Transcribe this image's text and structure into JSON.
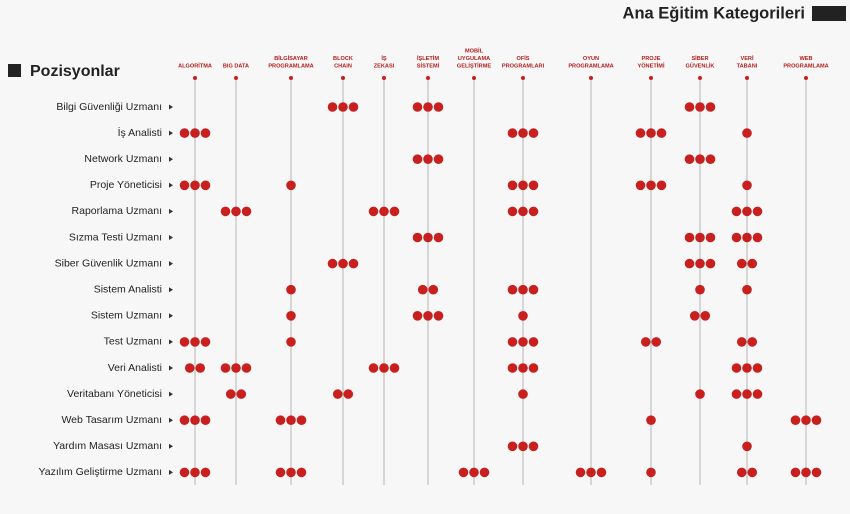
{
  "chart_data": {
    "type": "dot-matrix",
    "title": "Ana Eğitim Kategorileri",
    "row_title": "Pozisyonlar",
    "categories": [
      [
        "ALGORİTMA"
      ],
      [
        "BIG DATA"
      ],
      [
        "BİLGİSAYAR",
        "PROGRAMLAMA"
      ],
      [
        "BLOCK",
        "CHAIN"
      ],
      [
        "İŞ",
        "ZEKASI"
      ],
      [
        "İŞLETİM",
        "SİSTEMİ"
      ],
      [
        "MOBİL",
        "UYGULAMA",
        "GELİŞTİRME"
      ],
      [
        "OFİS",
        "PROGRAMLARI"
      ],
      [
        "OYUN",
        "PROGRAMLAMA"
      ],
      [
        "PROJE",
        "YÖNETİMİ"
      ],
      [
        "SİBER",
        "GÜVENLİK"
      ],
      [
        "VERİ",
        "TABANI"
      ],
      [
        "WEB",
        "PROGRAMLAMA"
      ]
    ],
    "rows": [
      "Bilgi Güvenliği Uzmanı",
      "İş Analisti",
      "Network Uzmanı",
      "Proje Yöneticisi",
      "Raporlama Uzmanı",
      "Sızma Testi Uzmanı",
      "Siber Güvenlik Uzmanı",
      "Sistem Analisti",
      "Sistem Uzmanı",
      "Test Uzmanı",
      "Veri Analisti",
      "Veritabanı Yöneticisi",
      "Web Tasarım Uzmanı",
      "Yardım Masası Uzmanı",
      "Yazılım Geliştirme Uzmanı"
    ],
    "values": [
      [
        null,
        null,
        null,
        3,
        null,
        3,
        null,
        null,
        null,
        null,
        3,
        null,
        null
      ],
      [
        3,
        null,
        null,
        null,
        null,
        null,
        null,
        3,
        null,
        3,
        null,
        1,
        null
      ],
      [
        null,
        null,
        null,
        null,
        null,
        3,
        null,
        null,
        null,
        null,
        3,
        null,
        null
      ],
      [
        3,
        null,
        1,
        null,
        null,
        null,
        null,
        3,
        null,
        3,
        null,
        1,
        null
      ],
      [
        null,
        3,
        null,
        null,
        3,
        null,
        null,
        3,
        null,
        null,
        null,
        3,
        null
      ],
      [
        null,
        null,
        null,
        null,
        null,
        3,
        null,
        null,
        null,
        null,
        3,
        3,
        null
      ],
      [
        null,
        null,
        null,
        3,
        null,
        null,
        null,
        null,
        null,
        null,
        3,
        2,
        null
      ],
      [
        null,
        null,
        1,
        null,
        null,
        2,
        null,
        3,
        null,
        null,
        1,
        1,
        null
      ],
      [
        null,
        null,
        1,
        null,
        null,
        3,
        null,
        1,
        null,
        null,
        2,
        null,
        null
      ],
      [
        3,
        null,
        1,
        null,
        null,
        null,
        null,
        3,
        null,
        2,
        null,
        2,
        null
      ],
      [
        2,
        3,
        null,
        null,
        3,
        null,
        null,
        3,
        null,
        null,
        null,
        3,
        null
      ],
      [
        null,
        2,
        null,
        2,
        null,
        null,
        null,
        1,
        null,
        null,
        1,
        3,
        null
      ],
      [
        3,
        null,
        3,
        null,
        null,
        null,
        null,
        null,
        null,
        1,
        null,
        null,
        3
      ],
      [
        null,
        null,
        null,
        null,
        null,
        null,
        null,
        3,
        null,
        null,
        null,
        1,
        null
      ],
      [
        3,
        null,
        3,
        null,
        null,
        null,
        3,
        null,
        3,
        1,
        null,
        2,
        3
      ]
    ],
    "color": "#c8201e"
  }
}
